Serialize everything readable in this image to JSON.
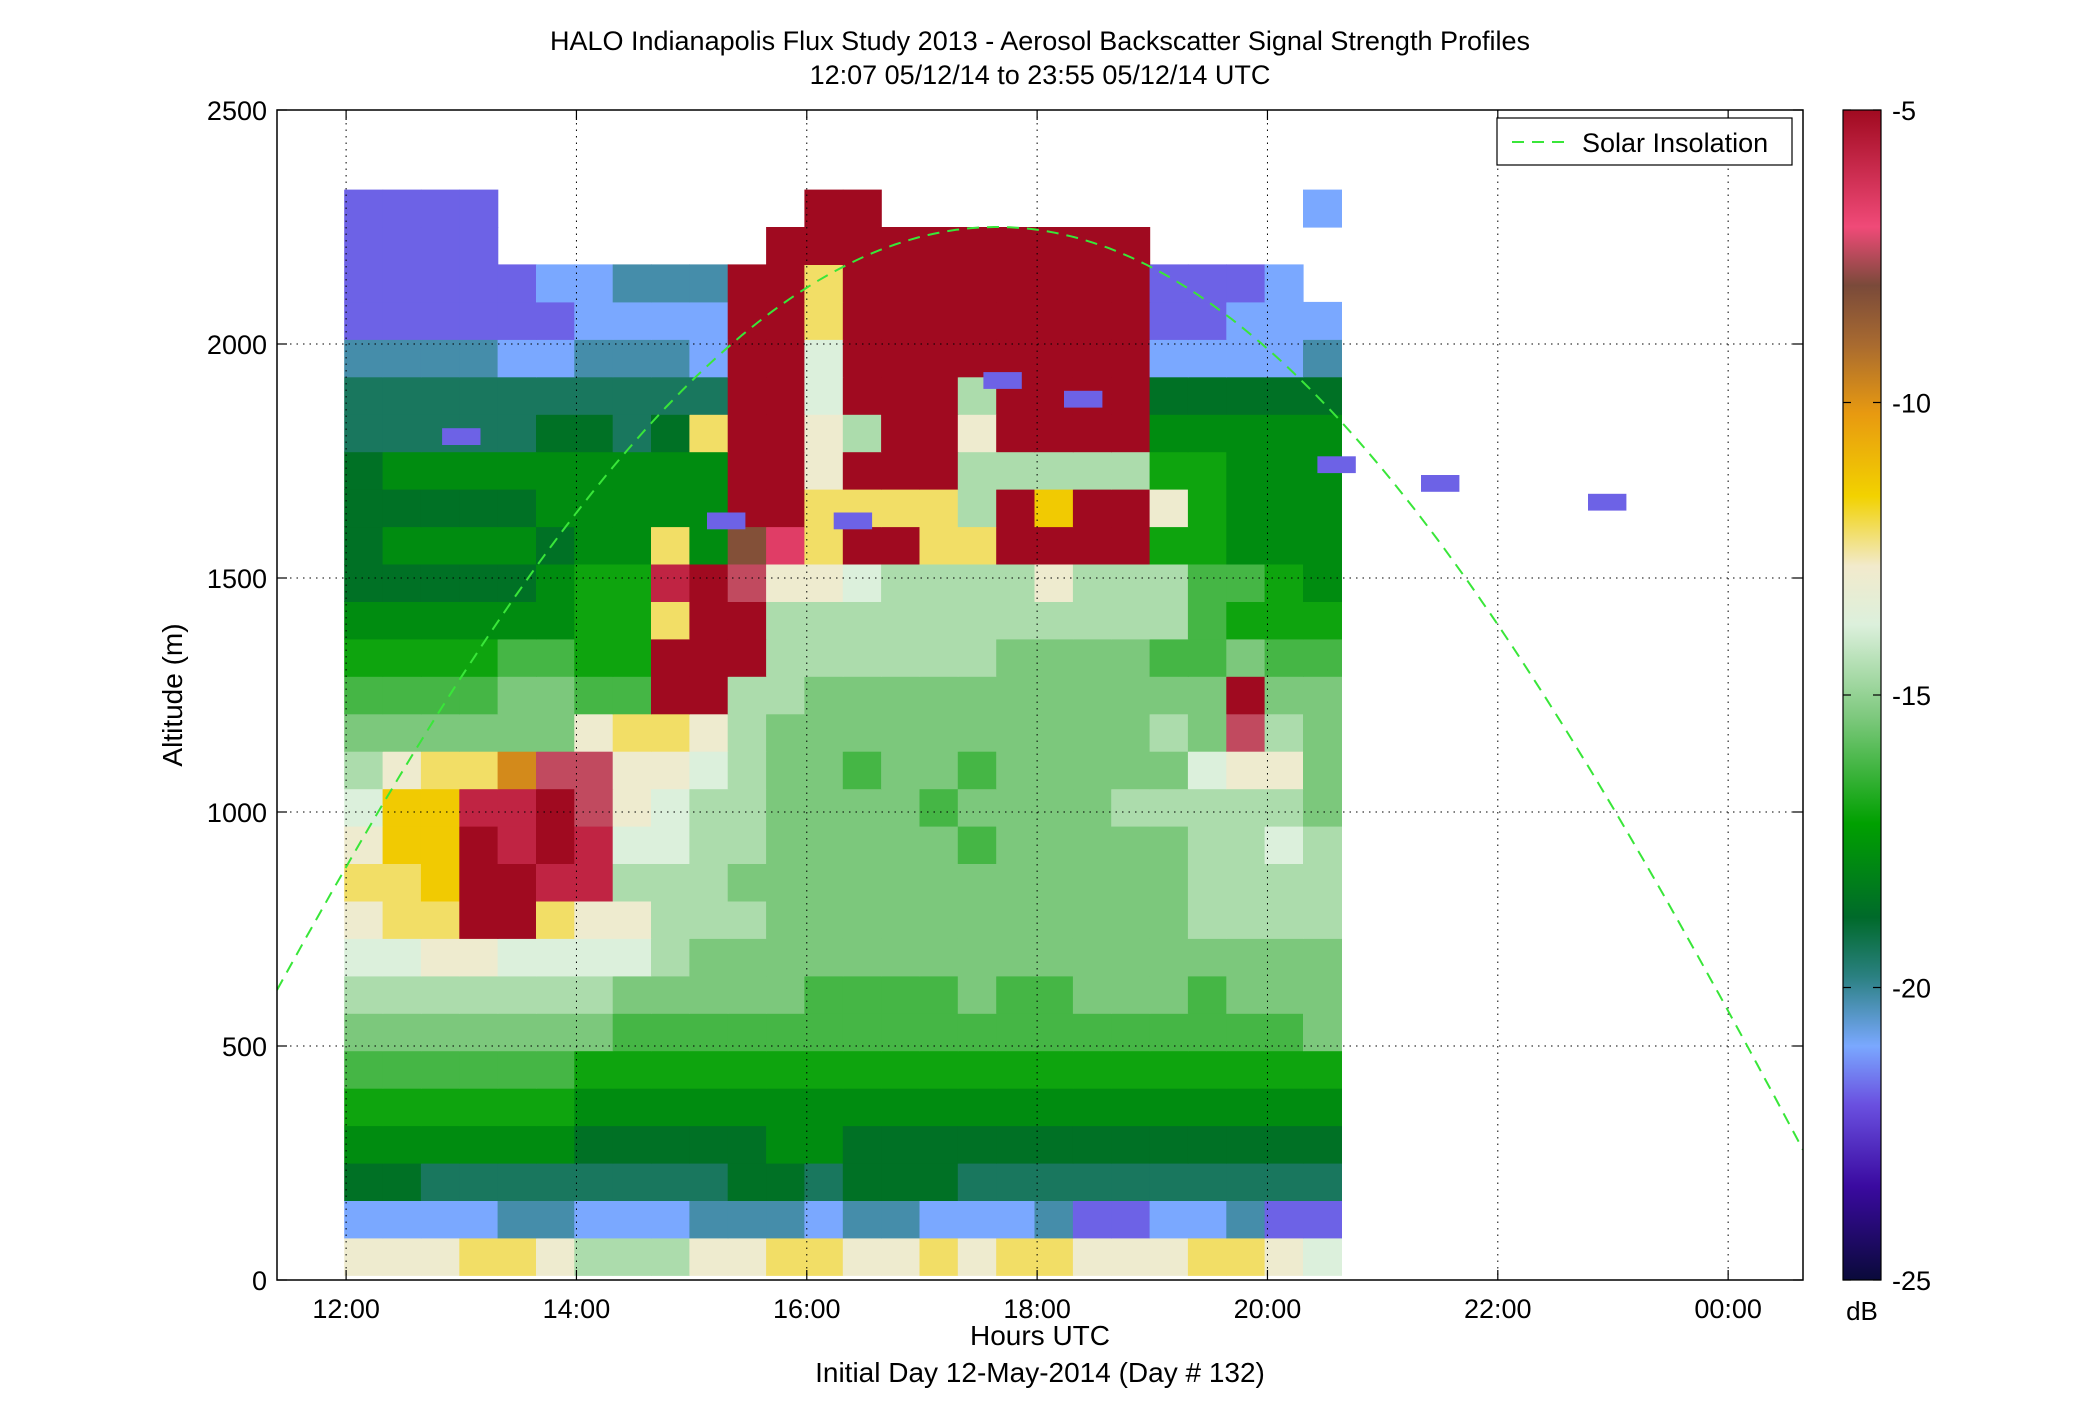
{
  "chart_data": {
    "type": "heatmap",
    "title": "HALO Indianapolis Flux Study 2013 - Aerosol Backscatter Signal Strength Profiles",
    "subtitle": "12:07 05/12/14 to 23:55 05/12/14  UTC",
    "xlabel": "Hours UTC",
    "xlabel2": "Initial Day 12-May-2014 (Day # 132)",
    "ylabel": "Altitude (m)",
    "xlim_hours": [
      11.4,
      24.65
    ],
    "ylim": [
      0,
      2500
    ],
    "x_ticks": [
      {
        "value": 12,
        "label": "12:00"
      },
      {
        "value": 14,
        "label": "14:00"
      },
      {
        "value": 16,
        "label": "16:00"
      },
      {
        "value": 18,
        "label": "18:00"
      },
      {
        "value": 20,
        "label": "20:00"
      },
      {
        "value": 22,
        "label": "22:00"
      },
      {
        "value": 24,
        "label": "00:00"
      }
    ],
    "y_ticks": [
      {
        "value": 0,
        "label": "0"
      },
      {
        "value": 500,
        "label": "500"
      },
      {
        "value": 1000,
        "label": "1000"
      },
      {
        "value": 1500,
        "label": "1500"
      },
      {
        "value": 2000,
        "label": "2000"
      },
      {
        "value": 2500,
        "label": "2500"
      }
    ],
    "grid": true,
    "legend": {
      "position": "top-right",
      "entries": [
        {
          "name": "Solar Insolation",
          "color": "#39e639",
          "style": "dashed"
        }
      ]
    },
    "colorbar": {
      "label": "dB",
      "range": [
        -25,
        -5
      ],
      "ticks": [
        {
          "value": -5,
          "label": "-5"
        },
        {
          "value": -10,
          "label": "-10"
        },
        {
          "value": -15,
          "label": "-15"
        },
        {
          "value": -20,
          "label": "-20"
        },
        {
          "value": -25,
          "label": "-25"
        }
      ],
      "stops": [
        {
          "v": 0.0,
          "c": "#0a0a3a"
        },
        {
          "v": 0.08,
          "c": "#3a0aa0"
        },
        {
          "v": 0.15,
          "c": "#6a50e0"
        },
        {
          "v": 0.2,
          "c": "#7aa8ff"
        },
        {
          "v": 0.26,
          "c": "#2a8080"
        },
        {
          "v": 0.31,
          "c": "#006a2a"
        },
        {
          "v": 0.39,
          "c": "#00a000"
        },
        {
          "v": 0.48,
          "c": "#7cc87c"
        },
        {
          "v": 0.56,
          "c": "#dcf0dc"
        },
        {
          "v": 0.61,
          "c": "#f2eacc"
        },
        {
          "v": 0.67,
          "c": "#f2d200"
        },
        {
          "v": 0.74,
          "c": "#e89a10"
        },
        {
          "v": 0.8,
          "c": "#a86a30"
        },
        {
          "v": 0.85,
          "c": "#7a4a3a"
        },
        {
          "v": 0.9,
          "c": "#f04a78"
        },
        {
          "v": 1.0,
          "c": "#a00a20"
        }
      ]
    },
    "solar_insolation_curve": {
      "peak_time_hours": 17.65,
      "peak_altitude": 2250
    },
    "heatmap": {
      "t_start_hours": 12.15,
      "t_step_hours": 0.333,
      "z_start": 50,
      "z_step": 80,
      "units": "dB",
      "value_codes": "letters a..z map linearly from -25 dB (a) to -5 dB (z); '.' = no data",
      "rows_bottom_to_top": [
        "pppqqpnnnppqqppqpqqpppqqpo",
        "ffffggfffgggfggfffgeeffgee",
        "iihhhhhhhhiihiiihhhhhhhhhh",
        "jjjjjjiiiiijjiiiiiiiiiiiii",
        "kkkkkkjjjjjjjjjjjjjjjjjjjj",
        "llllllkkkkkkkkkkkkkkkkkkkk",
        "mmmmmmmllllllllllllllllllm",
        "nnnnnnnmmmmmllllmllmmmlmmm",
        "ooppoooonmmmmmmmmmmmmmmmmm",
        "pqqzzqppnnnmmmmmmmmmmmnnnn",
        "qqrzzyynnnmmmmmmmmmmmmnnnn",
        "prrzyzyoonnmmmmmlmmmmmnnon",
        "orryyzwponnmmmmlmmmmnnnnnm",
        "npqqtwwpponmmlmmlmmmmmoppm",
        "mmmmmmpqqpnmmmmmmmmmmnmwnm",
        "llllmmllzznnmmmmmmmmmmmzmm",
        "kkkkllkkzzznnnnnnmmmmllmll",
        "jjjjjjkkqzznnnnnnnnnnnlkkk",
        "iiiiijkkyzwpponnnnpnnnllkj",
        "ijjjjijjqjvxqzzqqzzzzkkjjj",
        "iiiiijjjjjzzqqqqnzrzzpkjjj",
        "ijjjjjjjjjzzpzzznnnnnkkjjj",
        "hhhhhiihiqzzpnzzpzzzzjjjjj",
        "hhhhhhhhhhzzozzznzzzziiiii",
        "ggggffgggfzzozzzzzzzzffffg",
        "eeeeeeffffzzqzzzzzzzzeefff",
        "eeeeeffgggzzqzzzzzzzzeeef.",
        "eeee.......zzzzzzzzzz.....",
        "eeee........zz...........f"
      ],
      "isolated_cells": [
        {
          "t": 13.0,
          "z": 1780,
          "code": "e"
        },
        {
          "t": 17.7,
          "z": 1900,
          "code": "e"
        },
        {
          "t": 18.4,
          "z": 1860,
          "code": "e"
        },
        {
          "t": 16.4,
          "z": 1600,
          "code": "e"
        },
        {
          "t": 15.3,
          "z": 1600,
          "code": "e"
        },
        {
          "t": 22.95,
          "z": 1640,
          "code": "e"
        },
        {
          "t": 21.5,
          "z": 1680,
          "code": "e"
        },
        {
          "t": 20.6,
          "z": 1720,
          "code": "e"
        }
      ]
    }
  }
}
